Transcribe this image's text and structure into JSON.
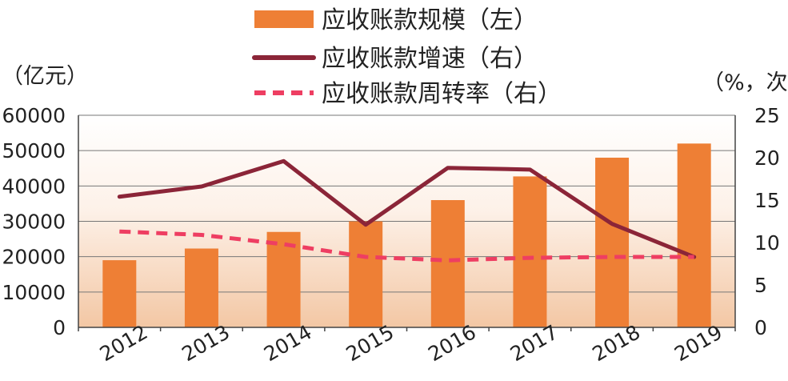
{
  "chart_data": {
    "type": "bar",
    "title": "",
    "categories": [
      "2012",
      "2013",
      "2014",
      "2015",
      "2016",
      "2017",
      "2018",
      "2019"
    ],
    "y_left": {
      "unit_label": "（亿元）",
      "ticks": [
        "0",
        "10000",
        "20000",
        "30000",
        "40000",
        "50000",
        "60000"
      ],
      "range": [
        0,
        60000
      ]
    },
    "y_right": {
      "unit_label": "（%，次）",
      "ticks": [
        "0",
        "5",
        "10",
        "15",
        "20",
        "25"
      ],
      "range": [
        0,
        25
      ]
    },
    "series": [
      {
        "name": "应收账款规模（左）",
        "type": "bar",
        "axis": "left",
        "color": "#ee7f35",
        "values": [
          19000,
          22300,
          27000,
          30000,
          36000,
          42700,
          48000,
          52000
        ]
      },
      {
        "name": "应收账款增速（右）",
        "type": "line",
        "axis": "right",
        "color": "#8b2538",
        "values": [
          15.4,
          16.6,
          19.6,
          12.1,
          18.8,
          18.6,
          12.2,
          8.3
        ]
      },
      {
        "name": "应收账款周转率（右）",
        "type": "line-dashed",
        "axis": "right",
        "color": "#ee3e62",
        "values": [
          11.3,
          10.9,
          9.8,
          8.3,
          7.9,
          8.2,
          8.3,
          8.3
        ]
      }
    ],
    "grid": true,
    "legend_position": "top-center"
  }
}
